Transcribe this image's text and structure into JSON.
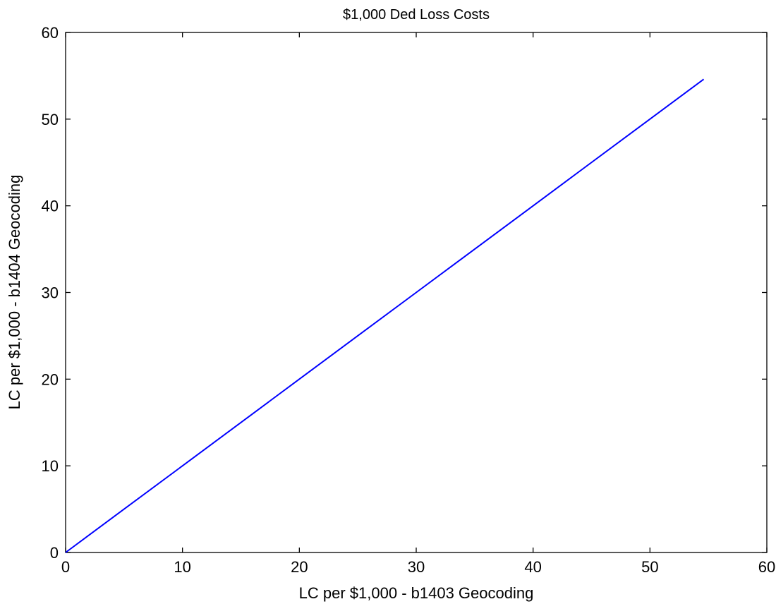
{
  "chart_data": {
    "type": "line",
    "title": "$1,000 Ded Loss Costs",
    "xlabel": "LC per $1,000 - b1403 Geocoding",
    "ylabel": "LC per $1,000 - b1404 Geocoding",
    "xlim": [
      0,
      60
    ],
    "ylim": [
      0,
      60
    ],
    "xticks": [
      0,
      10,
      20,
      30,
      40,
      50,
      60
    ],
    "yticks": [
      0,
      10,
      20,
      30,
      40,
      50,
      60
    ],
    "grid": false,
    "series": [
      {
        "color": "#0000ff",
        "x": [
          0,
          5,
          10,
          20,
          30,
          40,
          44,
          50,
          54.6
        ],
        "y": [
          0,
          5,
          10,
          20,
          30,
          40,
          44,
          50,
          54.6
        ]
      }
    ]
  }
}
